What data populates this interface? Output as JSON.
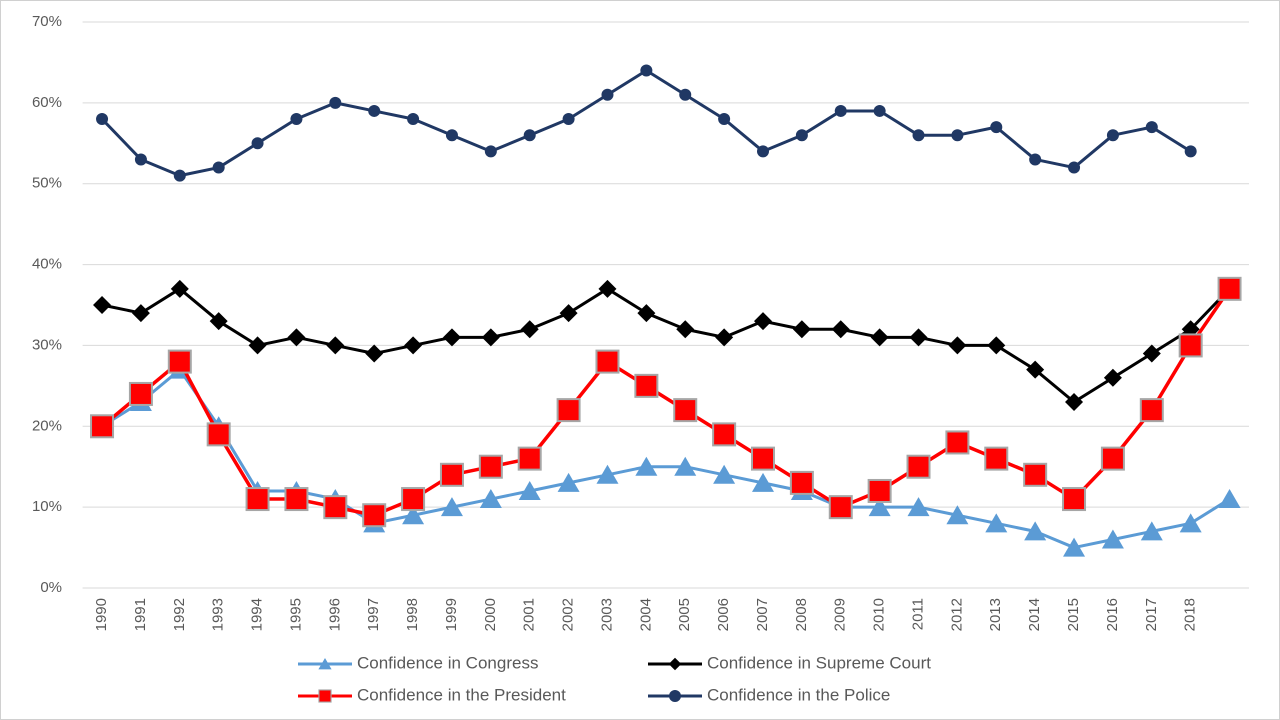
{
  "chart_data": {
    "type": "line",
    "categories": [
      "1990",
      "1991",
      "1992",
      "1993",
      "1994",
      "1995",
      "1996",
      "1997",
      "1998",
      "1999",
      "2000",
      "2001",
      "2002",
      "2003",
      "2004",
      "2005",
      "2006",
      "2007",
      "2008",
      "2009",
      "2010",
      "2011",
      "2012",
      "2013",
      "2014",
      "2015",
      "2016",
      "2017",
      "2018",
      null
    ],
    "series": [
      {
        "name": "Confidence in Congress",
        "color": "#5b9bd5",
        "marker": "triangle",
        "values": [
          20,
          23,
          27,
          20,
          12,
          12,
          11,
          8,
          9,
          10,
          11,
          12,
          13,
          14,
          15,
          15,
          14,
          13,
          12,
          10,
          10,
          10,
          9,
          8,
          7,
          5,
          6,
          7,
          8,
          11
        ]
      },
      {
        "name": "Confidence in Supreme Court",
        "color": "#000000",
        "marker": "diamond",
        "values": [
          35,
          34,
          37,
          33,
          30,
          31,
          30,
          29,
          30,
          31,
          31,
          32,
          34,
          37,
          34,
          32,
          31,
          33,
          32,
          32,
          31,
          31,
          30,
          30,
          27,
          23,
          26,
          29,
          32,
          37
        ]
      },
      {
        "name": "Confidence in the President",
        "color": "#ff0000",
        "marker": "square",
        "values": [
          20,
          24,
          28,
          19,
          11,
          11,
          10,
          9,
          11,
          14,
          15,
          16,
          22,
          28,
          25,
          22,
          19,
          16,
          13,
          10,
          12,
          15,
          18,
          16,
          14,
          11,
          16,
          22,
          30,
          37
        ]
      },
      {
        "name": "Confidence in the Police",
        "color": "#203864",
        "marker": "circle",
        "values": [
          58,
          53,
          51,
          52,
          55,
          58,
          60,
          59,
          58,
          56,
          54,
          56,
          58,
          61,
          64,
          61,
          58,
          54,
          56,
          59,
          59,
          56,
          56,
          57,
          53,
          52,
          56,
          57,
          54,
          null
        ]
      }
    ],
    "ylim": [
      0,
      70
    ],
    "yticks": [
      {
        "value": 0,
        "label": "0%"
      },
      {
        "value": 10,
        "label": "10%"
      },
      {
        "value": 20,
        "label": "20%"
      },
      {
        "value": 30,
        "label": "30%"
      },
      {
        "value": 40,
        "label": "40%"
      },
      {
        "value": 50,
        "label": "50%"
      },
      {
        "value": 60,
        "label": "60%"
      },
      {
        "value": 70,
        "label": "70%"
      }
    ],
    "grid": true
  }
}
